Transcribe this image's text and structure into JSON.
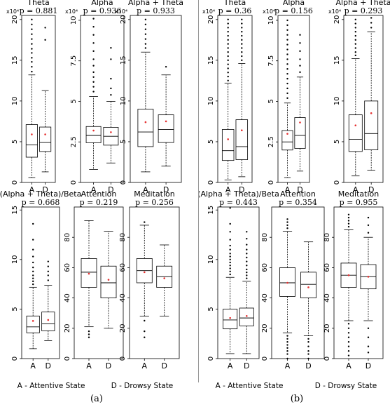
{
  "figure": {
    "captions": [
      "(a)",
      "(b)"
    ],
    "legend": [
      "A - Attentive State",
      "D - Drowsy State"
    ]
  },
  "chart_data": [
    {
      "type": "box",
      "panel": "a",
      "title": "Theta",
      "p_text": "p = 0.881",
      "exp": "x10⁴",
      "categories": [
        "A",
        "D"
      ],
      "ylim": [
        0,
        20.5
      ],
      "yticks": [
        0,
        5,
        10,
        15,
        20
      ],
      "ytick_labels": [
        "0",
        "5",
        "10",
        "15",
        "20"
      ],
      "boxes": [
        {
          "q1": 3.1,
          "med": 4.6,
          "q3": 7.1,
          "wlo": 0.6,
          "whi": 13.2,
          "mean": 5.9,
          "outliers": [
            13.6,
            14.2,
            14.8,
            15.3,
            15.9,
            16.4,
            17.0,
            17.6,
            18.2,
            18.8,
            19.4,
            20.0
          ]
        },
        {
          "q1": 3.8,
          "med": 4.9,
          "q3": 6.8,
          "wlo": 1.3,
          "whi": 11.3,
          "mean": 5.9,
          "outliers": [
            17.5,
            19.0
          ]
        }
      ]
    },
    {
      "type": "box",
      "panel": "a",
      "title": "Alpha",
      "p_text": "p = 0.936",
      "exp": "x10⁴",
      "categories": [
        "A",
        "D"
      ],
      "ylim": [
        0,
        10.3
      ],
      "yticks": [
        0,
        2.5,
        5,
        7.5,
        10
      ],
      "ytick_labels": [
        "0",
        "2.5",
        "5",
        "7.5",
        "10"
      ],
      "boxes": [
        {
          "q1": 2.45,
          "med": 2.9,
          "q3": 3.45,
          "wlo": 0.8,
          "whi": 5.3,
          "mean": 3.2,
          "outliers": [
            5.6,
            5.9,
            6.2,
            6.5,
            6.8,
            7.2,
            7.6,
            8.1,
            8.6,
            9.1,
            9.6,
            10.1
          ]
        },
        {
          "q1": 2.3,
          "med": 2.85,
          "q3": 3.4,
          "wlo": 1.2,
          "whi": 5.0,
          "mean": 3.1,
          "outliers": [
            5.4,
            5.8,
            6.4,
            7.6,
            8.3
          ]
        }
      ]
    },
    {
      "type": "box",
      "panel": "a",
      "title": "Alpha + Theta",
      "p_text": "p = 0.933",
      "exp": "x10⁴",
      "categories": [
        "A",
        "D"
      ],
      "ylim": [
        0,
        20.5
      ],
      "yticks": [
        0,
        5,
        10,
        15,
        20
      ],
      "ytick_labels": [
        "0",
        "5",
        "10",
        "15",
        "20"
      ],
      "boxes": [
        {
          "q1": 4.4,
          "med": 6.2,
          "q3": 9.0,
          "wlo": 1.3,
          "whi": 16.0,
          "mean": 7.4,
          "outliers": [
            16.5,
            17.0,
            17.6,
            18.2,
            18.8,
            19.4,
            20.0
          ]
        },
        {
          "q1": 4.9,
          "med": 6.5,
          "q3": 8.3,
          "wlo": 2.0,
          "whi": 13.2,
          "mean": 7.5,
          "outliers": [
            14.2
          ]
        }
      ]
    },
    {
      "type": "box",
      "panel": "b",
      "title": "Theta",
      "p_text": "p = 0.36",
      "exp": "x10⁴",
      "categories": [
        "A",
        "D"
      ],
      "ylim": [
        0,
        20.5
      ],
      "yticks": [
        0,
        5,
        10,
        15,
        20
      ],
      "ytick_labels": [
        "0",
        "5",
        "10",
        "15",
        "20"
      ],
      "boxes": [
        {
          "q1": 2.7,
          "med": 3.9,
          "q3": 6.5,
          "wlo": 0.3,
          "whi": 12.2,
          "mean": 5.3,
          "outliers": [
            12.5,
            13.0,
            13.5,
            14.0,
            14.5,
            15.0,
            15.5,
            16.0,
            16.5,
            17.0,
            17.5,
            18.0,
            18.5,
            19.0,
            19.5,
            20.0
          ]
        },
        {
          "q1": 2.8,
          "med": 4.4,
          "q3": 7.7,
          "wlo": 0.7,
          "whi": 14.6,
          "mean": 6.4,
          "outliers": [
            15.0,
            15.5,
            16.0,
            16.5,
            17.0,
            17.5,
            18.0,
            18.5,
            19.0,
            19.5,
            20.0
          ]
        }
      ]
    },
    {
      "type": "box",
      "panel": "b",
      "title": "Alpha",
      "p_text": "p = 0.156",
      "exp": "x10⁴",
      "categories": [
        "A",
        "D"
      ],
      "ylim": [
        0,
        10.3
      ],
      "yticks": [
        0,
        2.5,
        5,
        7.5,
        10
      ],
      "ytick_labels": [
        "0",
        "2.5",
        "5",
        "7.5",
        "10"
      ],
      "boxes": [
        {
          "q1": 2.0,
          "med": 2.5,
          "q3": 3.2,
          "wlo": 0.3,
          "whi": 4.9,
          "mean": 3.0,
          "outliers": [
            5.2,
            5.5,
            5.8,
            6.1,
            6.4,
            6.7,
            7.0,
            7.3,
            7.6,
            7.9,
            8.2,
            8.5,
            8.8,
            9.1,
            9.4,
            9.7,
            10.0
          ]
        },
        {
          "q1": 2.1,
          "med": 2.9,
          "q3": 4.0,
          "wlo": 0.7,
          "whi": 6.5,
          "mean": 3.7,
          "outliers": [
            6.8,
            7.2,
            7.6,
            8.1,
            8.6,
            9.1
          ]
        }
      ]
    },
    {
      "type": "box",
      "panel": "b",
      "title": "Alpha + Theta",
      "p_text": "p = 0.293",
      "exp": "x10⁴",
      "categories": [
        "A",
        "D"
      ],
      "ylim": [
        0,
        20.5
      ],
      "yticks": [
        0,
        5,
        10,
        15,
        20
      ],
      "ytick_labels": [
        "0",
        "5",
        "10",
        "15",
        "20"
      ],
      "boxes": [
        {
          "q1": 3.8,
          "med": 5.3,
          "q3": 8.3,
          "wlo": 0.8,
          "whi": 15.2,
          "mean": 7.0,
          "outliers": [
            15.6,
            16.0,
            16.5,
            17.0,
            17.5,
            18.0,
            18.5,
            19.0,
            19.5,
            20.0
          ]
        },
        {
          "q1": 4.0,
          "med": 6.0,
          "q3": 10.0,
          "wlo": 1.5,
          "whi": 18.5,
          "mean": 8.5,
          "outliers": [
            19.0,
            19.6,
            20.2
          ]
        }
      ]
    },
    {
      "type": "box",
      "panel": "a",
      "title": "(Alpha + Theta)/Beta",
      "p_text": "p = 0.668",
      "exp": "",
      "categories": [
        "A",
        "D"
      ],
      "ylim": [
        0,
        15.3
      ],
      "yticks": [
        0,
        5,
        10,
        15
      ],
      "ytick_labels": [
        "0",
        "5",
        "10",
        "15"
      ],
      "boxes": [
        {
          "q1": 2.6,
          "med": 3.2,
          "q3": 4.3,
          "wlo": 1.0,
          "whi": 7.2,
          "mean": 3.8,
          "outliers": [
            7.5,
            7.8,
            8.1,
            8.4,
            8.8,
            9.2,
            9.7,
            10.3,
            11.0,
            12.0,
            13.6
          ]
        },
        {
          "q1": 2.8,
          "med": 3.5,
          "q3": 4.7,
          "wlo": 1.8,
          "whi": 7.4,
          "mean": 3.9,
          "outliers": [
            7.9,
            8.4,
            8.8,
            9.3,
            9.8
          ]
        }
      ]
    },
    {
      "type": "box",
      "panel": "a",
      "title": "Attention",
      "p_text": "p = 0.219",
      "exp": "",
      "categories": [
        "A",
        "D"
      ],
      "ylim": [
        0,
        100
      ],
      "yticks": [
        0,
        20,
        40,
        60,
        80
      ],
      "ytick_labels": [
        "0",
        "20",
        "40",
        "60",
        "80"
      ],
      "boxes": [
        {
          "q1": 47,
          "med": 57,
          "q3": 66,
          "wlo": 21,
          "whi": 91,
          "mean": 56,
          "outliers": [
            14,
            16,
            18
          ]
        },
        {
          "q1": 40,
          "med": 50,
          "q3": 61,
          "wlo": 20,
          "whi": 84,
          "mean": 52,
          "outliers": []
        }
      ]
    },
    {
      "type": "box",
      "panel": "a",
      "title": "Meditation",
      "p_text": "p = 0.256",
      "exp": "",
      "categories": [
        "A",
        "D"
      ],
      "ylim": [
        0,
        100
      ],
      "yticks": [
        0,
        20,
        40,
        60,
        80
      ],
      "ytick_labels": [
        "0",
        "20",
        "40",
        "60",
        "80"
      ],
      "boxes": [
        {
          "q1": 50,
          "med": 58,
          "q3": 66,
          "wlo": 28,
          "whi": 88,
          "mean": 57,
          "outliers": [
            14,
            18,
            25,
            90
          ]
        },
        {
          "q1": 47,
          "med": 54,
          "q3": 61,
          "wlo": 28,
          "whi": 75,
          "mean": 53,
          "outliers": []
        }
      ]
    },
    {
      "type": "box",
      "panel": "b",
      "title": "(Alpha + Theta)/Beta",
      "p_text": "p = 0.443",
      "exp": "",
      "categories": [
        "A",
        "D"
      ],
      "ylim": [
        0,
        15.3
      ],
      "yticks": [
        0,
        5,
        10,
        15
      ],
      "ytick_labels": [
        "0",
        "5",
        "10",
        "15"
      ],
      "boxes": [
        {
          "q1": 3.0,
          "med": 3.9,
          "q3": 5.0,
          "wlo": 0.5,
          "whi": 8.2,
          "mean": 4.1,
          "outliers": [
            8.5,
            8.8,
            9.1,
            9.4,
            9.7,
            10.0,
            10.3,
            10.6,
            11.0,
            11.4,
            12.0,
            12.8,
            13.6,
            15.2
          ]
        },
        {
          "q1": 3.3,
          "med": 4.1,
          "q3": 5.1,
          "wlo": 0.5,
          "whi": 7.8,
          "mean": 4.3,
          "outliers": [
            8.1,
            8.4,
            8.7,
            9.0,
            9.4,
            9.8,
            10.2,
            10.6,
            11.0,
            11.5,
            12.1,
            12.8
          ]
        }
      ]
    },
    {
      "type": "box",
      "panel": "b",
      "title": "Attention",
      "p_text": "p = 0.354",
      "exp": "",
      "categories": [
        "A",
        "D"
      ],
      "ylim": [
        0,
        100
      ],
      "yticks": [
        0,
        20,
        40,
        60,
        80
      ],
      "ytick_labels": [
        "0",
        "20",
        "40",
        "60",
        "80"
      ],
      "boxes": [
        {
          "q1": 41,
          "med": 50,
          "q3": 60,
          "wlo": 17,
          "whi": 84,
          "mean": 50,
          "outliers": [
            0,
            3,
            5,
            7,
            9,
            11,
            13,
            15,
            86,
            88,
            90,
            92
          ]
        },
        {
          "q1": 40,
          "med": 49,
          "q3": 57,
          "wlo": 15,
          "whi": 77,
          "mean": 47,
          "outliers": [
            0,
            3,
            5,
            8,
            11,
            13
          ]
        }
      ]
    },
    {
      "type": "box",
      "panel": "b",
      "title": "Meditation",
      "p_text": "p = 0.955",
      "exp": "",
      "categories": [
        "A",
        "D"
      ],
      "ylim": [
        0,
        100
      ],
      "yticks": [
        0,
        20,
        40,
        60,
        80
      ],
      "ytick_labels": [
        "0",
        "20",
        "40",
        "60",
        "80"
      ],
      "boxes": [
        {
          "q1": 47,
          "med": 55,
          "q3": 63,
          "wlo": 25,
          "whi": 85,
          "mean": 55,
          "outliers": [
            2,
            5,
            8,
            11,
            14,
            17,
            20,
            23,
            87,
            89,
            91,
            93,
            95
          ]
        },
        {
          "q1": 46,
          "med": 54,
          "q3": 62,
          "wlo": 25,
          "whi": 80,
          "mean": 54,
          "outliers": [
            4,
            8,
            14,
            20,
            83,
            88,
            93
          ]
        }
      ]
    }
  ]
}
